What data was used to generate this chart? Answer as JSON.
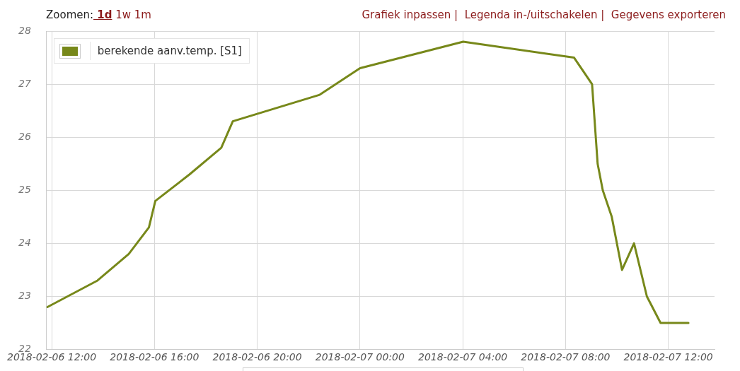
{
  "chart_data": {
    "type": "line",
    "annotations": [
      "Zoomen: 1d 1w 1m",
      "Grafiek inpassen |  Legenda in-/uitschakelen |  Gegevens exporteren"
    ],
    "x": [
      "2018-02-06T11:50",
      "2018-02-06T13:47",
      "2018-02-06T15:00",
      "2018-02-06T15:47",
      "2018-02-06T16:02",
      "2018-02-06T17:22",
      "2018-02-06T18:36",
      "2018-02-06T19:03",
      "2018-02-06T22:26",
      "2018-02-07T00:00",
      "2018-02-07T04:01",
      "2018-02-07T08:20",
      "2018-02-07T09:02",
      "2018-02-07T09:15",
      "2018-02-07T09:27",
      "2018-02-07T09:48",
      "2018-02-07T10:12",
      "2018-02-07T10:40",
      "2018-02-07T11:10",
      "2018-02-07T11:42",
      "2018-02-07T12:47"
    ],
    "series": [
      {
        "name": "berekende aanv.temp. [S1]",
        "color": "#77881a",
        "values": [
          22.8,
          23.3,
          23.8,
          24.3,
          24.8,
          25.3,
          25.8,
          26.3,
          26.8,
          27.3,
          27.8,
          27.5,
          27.0,
          25.5,
          25.0,
          24.5,
          23.5,
          24.0,
          23.0,
          22.5,
          22.5
        ]
      }
    ],
    "xlim": [
      "2018-02-06T11:48",
      "2018-02-07T13:48"
    ],
    "xticks": [
      {
        "value": "2018-02-06T12:00",
        "label": "2018-02-06 12:00"
      },
      {
        "value": "2018-02-06T16:00",
        "label": "2018-02-06 16:00"
      },
      {
        "value": "2018-02-06T20:00",
        "label": "2018-02-06 20:00"
      },
      {
        "value": "2018-02-07T00:00",
        "label": "2018-02-07 00:00"
      },
      {
        "value": "2018-02-07T04:00",
        "label": "2018-02-07 04:00"
      },
      {
        "value": "2018-02-07T08:00",
        "label": "2018-02-07 08:00"
      },
      {
        "value": "2018-02-07T12:00",
        "label": "2018-02-07 12:00"
      }
    ],
    "ylim": [
      22,
      28
    ],
    "yticks": [
      22,
      23,
      24,
      25,
      26,
      27,
      28
    ],
    "grid": true,
    "legend": "top left",
    "marker": "none",
    "line_style": "solid"
  }
}
